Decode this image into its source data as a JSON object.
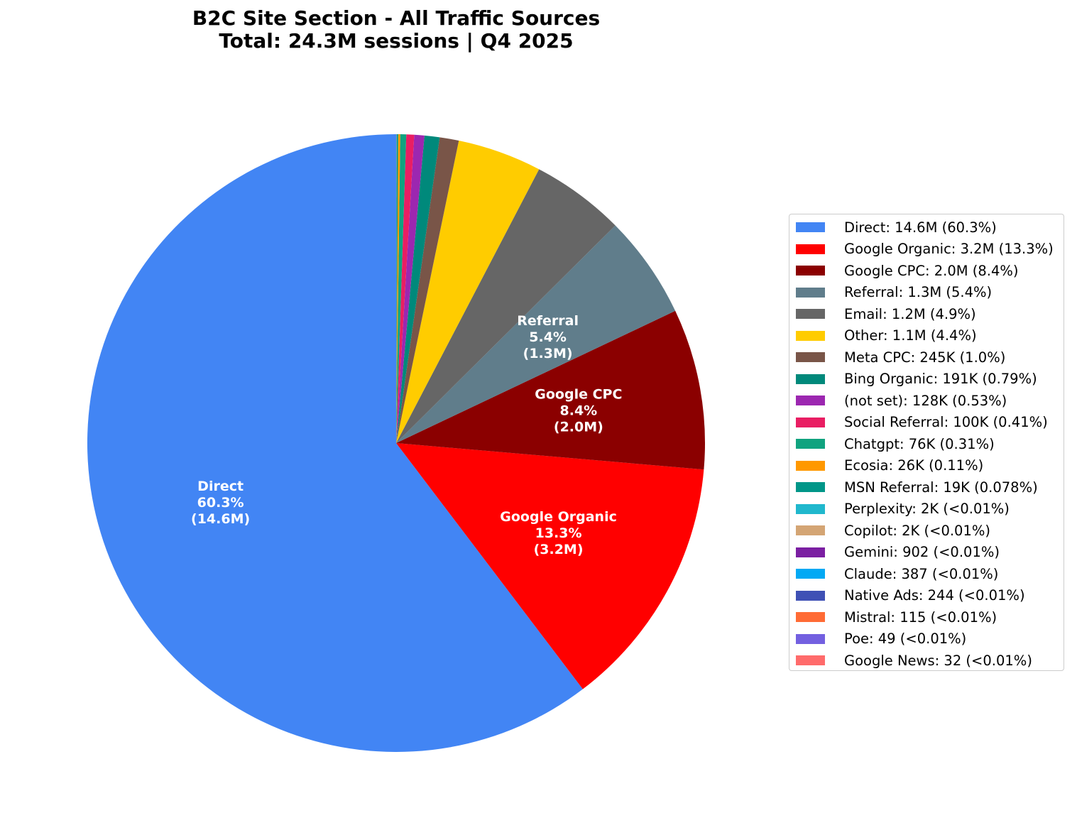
{
  "chart_data": {
    "type": "pie",
    "title": "B2C Site Section - All Traffic Sources",
    "subtitle": "Total: 24.3M sessions | Q4 2025",
    "start_angle": 90,
    "direction": "counterclockwise",
    "legend_position": "right",
    "slices": [
      {
        "name": "Direct",
        "value": 14600000,
        "value_label": "14.6M",
        "pct": 60.3,
        "pct_label": "60.3%",
        "color": "#4285F4",
        "legend": "Direct: 14.6M (60.3%)",
        "inner_label": [
          "Direct",
          "60.3%",
          "(14.6M)"
        ]
      },
      {
        "name": "Google Organic",
        "value": 3200000,
        "value_label": "3.2M",
        "pct": 13.3,
        "pct_label": "13.3%",
        "color": "#FF0000",
        "legend": "Google Organic: 3.2M (13.3%)",
        "inner_label": [
          "Google Organic",
          "13.3%",
          "(3.2M)"
        ]
      },
      {
        "name": "Google CPC",
        "value": 2000000,
        "value_label": "2.0M",
        "pct": 8.4,
        "pct_label": "8.4%",
        "color": "#8B0000",
        "legend": "Google CPC: 2.0M (8.4%)",
        "inner_label": [
          "Google CPC",
          "8.4%",
          "(2.0M)"
        ]
      },
      {
        "name": "Referral",
        "value": 1300000,
        "value_label": "1.3M",
        "pct": 5.4,
        "pct_label": "5.4%",
        "color": "#607D8B",
        "legend": "Referral: 1.3M (5.4%)",
        "inner_label": [
          "Referral",
          "5.4%",
          "(1.3M)"
        ]
      },
      {
        "name": "Email",
        "value": 1200000,
        "value_label": "1.2M",
        "pct": 4.9,
        "pct_label": "4.9%",
        "color": "#666666",
        "legend": "Email: 1.2M (4.9%)"
      },
      {
        "name": "Other",
        "value": 1100000,
        "value_label": "1.1M",
        "pct": 4.4,
        "pct_label": "4.4%",
        "color": "#FFCC00",
        "legend": "Other: 1.1M (4.4%)"
      },
      {
        "name": "Meta CPC",
        "value": 245000,
        "value_label": "245K",
        "pct": 1.0,
        "pct_label": "1.0%",
        "color": "#795548",
        "legend": "Meta CPC: 245K (1.0%)"
      },
      {
        "name": "Bing Organic",
        "value": 191000,
        "value_label": "191K",
        "pct": 0.79,
        "pct_label": "0.79%",
        "color": "#00897B",
        "legend": "Bing Organic: 191K (0.79%)"
      },
      {
        "name": "(not set)",
        "value": 128000,
        "value_label": "128K",
        "pct": 0.53,
        "pct_label": "0.53%",
        "color": "#9C27B0",
        "legend": "(not set): 128K (0.53%)"
      },
      {
        "name": "Social Referral",
        "value": 100000,
        "value_label": "100K",
        "pct": 0.41,
        "pct_label": "0.41%",
        "color": "#E91E63",
        "legend": "Social Referral: 100K (0.41%)"
      },
      {
        "name": "Chatgpt",
        "value": 76000,
        "value_label": "76K",
        "pct": 0.31,
        "pct_label": "0.31%",
        "color": "#10A37F",
        "legend": "Chatgpt: 76K (0.31%)"
      },
      {
        "name": "Ecosia",
        "value": 26000,
        "value_label": "26K",
        "pct": 0.11,
        "pct_label": "0.11%",
        "color": "#FF9800",
        "legend": "Ecosia: 26K (0.11%)"
      },
      {
        "name": "MSN Referral",
        "value": 19000,
        "value_label": "19K",
        "pct": 0.078,
        "pct_label": "0.078%",
        "color": "#009688",
        "legend": "MSN Referral: 19K (0.078%)"
      },
      {
        "name": "Perplexity",
        "value": 2000,
        "value_label": "2K",
        "pct": 0.008,
        "pct_label": "<0.01%",
        "color": "#20B8CD",
        "legend": "Perplexity: 2K (<0.01%)"
      },
      {
        "name": "Copilot",
        "value": 2000,
        "value_label": "2K",
        "pct": 0.008,
        "pct_label": "<0.01%",
        "color": "#D4A574",
        "legend": "Copilot: 2K (<0.01%)"
      },
      {
        "name": "Gemini",
        "value": 902,
        "value_label": "902",
        "pct": 0.004,
        "pct_label": "<0.01%",
        "color": "#7B1FA2",
        "legend": "Gemini: 902 (<0.01%)"
      },
      {
        "name": "Claude",
        "value": 387,
        "value_label": "387",
        "pct": 0.002,
        "pct_label": "<0.01%",
        "color": "#03A9F4",
        "legend": "Claude: 387 (<0.01%)"
      },
      {
        "name": "Native Ads",
        "value": 244,
        "value_label": "244",
        "pct": 0.001,
        "pct_label": "<0.01%",
        "color": "#3F51B5",
        "legend": "Native Ads: 244 (<0.01%)"
      },
      {
        "name": "Mistral",
        "value": 115,
        "value_label": "115",
        "pct": 0.0005,
        "pct_label": "<0.01%",
        "color": "#FF6B35",
        "legend": "Mistral: 115 (<0.01%)"
      },
      {
        "name": "Poe",
        "value": 49,
        "value_label": "49",
        "pct": 0.0002,
        "pct_label": "<0.01%",
        "color": "#7360E0",
        "legend": "Poe: 49 (<0.01%)"
      },
      {
        "name": "Google News",
        "value": 32,
        "value_label": "32",
        "pct": 0.0001,
        "pct_label": "<0.01%",
        "color": "#FF6B6B",
        "legend": "Google News: 32 (<0.01%)"
      }
    ]
  }
}
